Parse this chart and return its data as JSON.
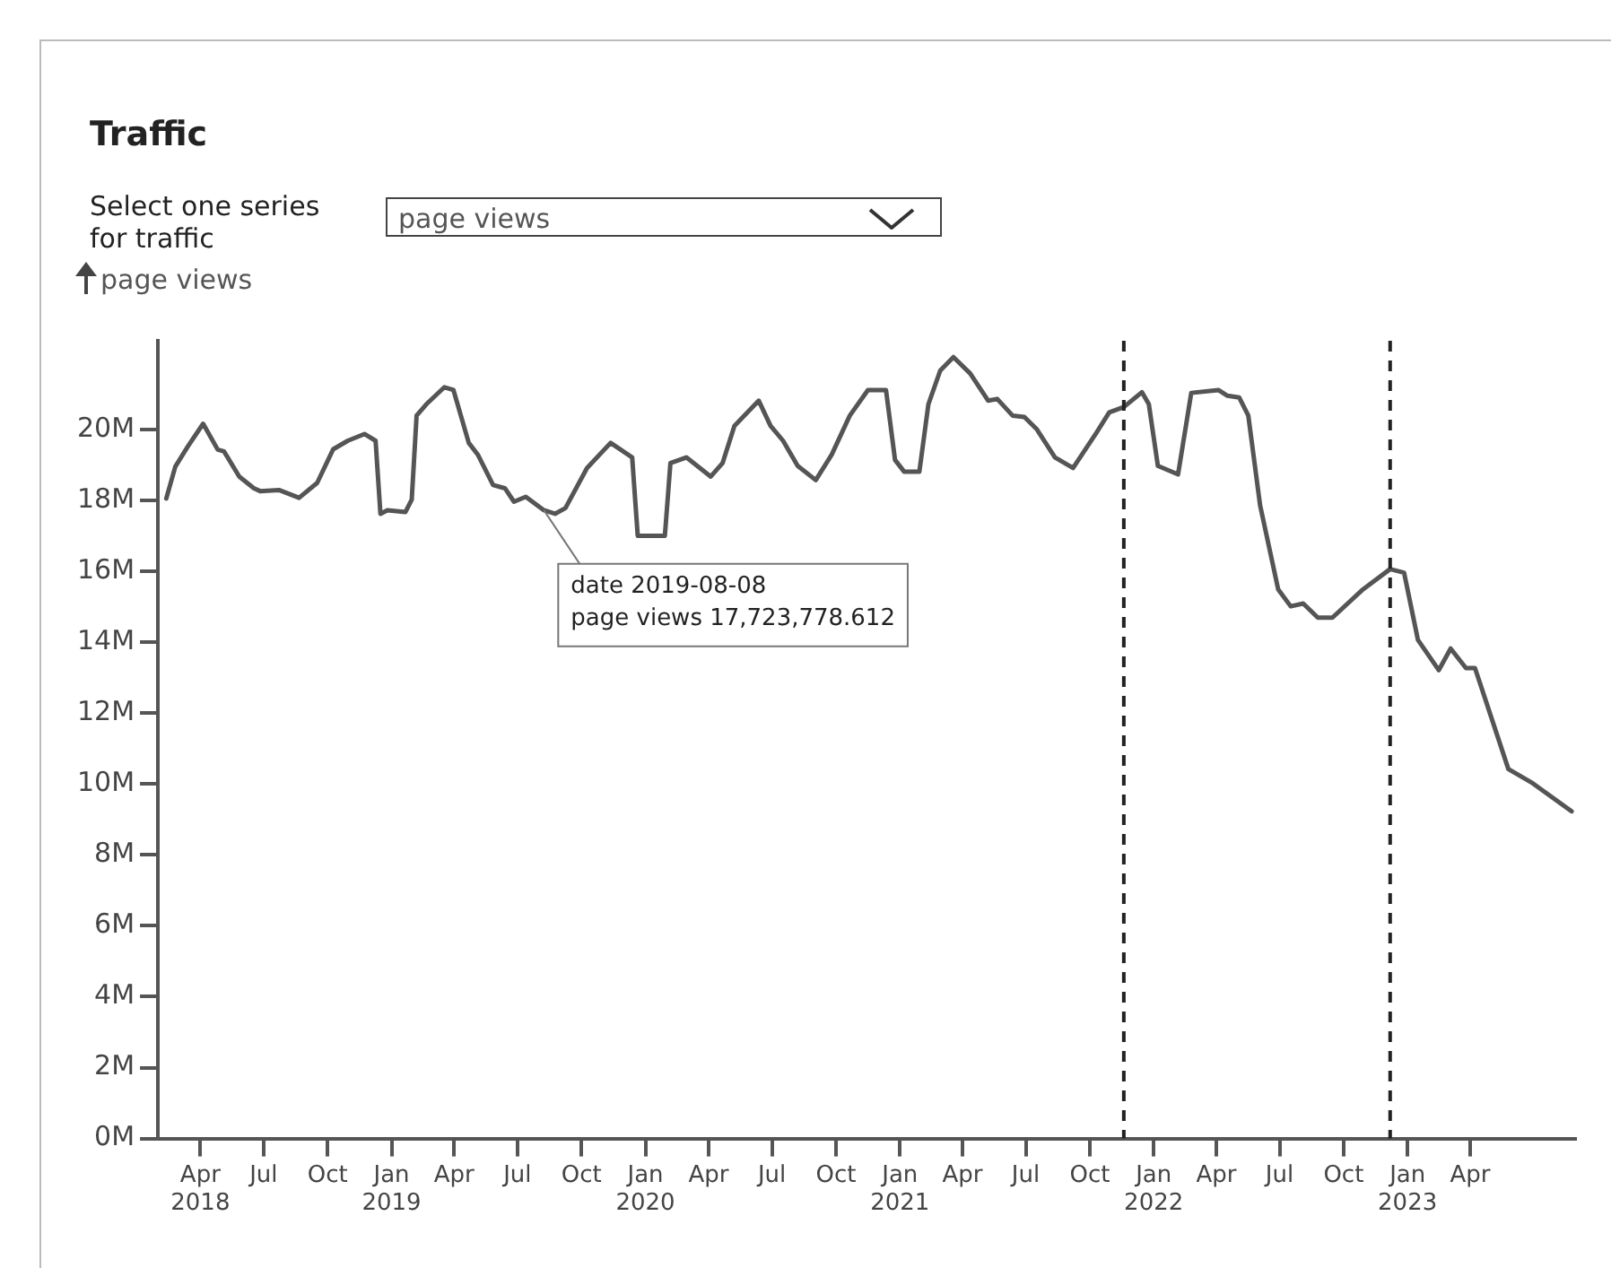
{
  "chart_data": {
    "type": "line",
    "title": "Traffic",
    "subtitle": "Select one series for traffic",
    "ylabel": "page views",
    "x": [
      "2018-02-11",
      "2018-02-24",
      "2018-03-14",
      "2018-04-05",
      "2018-04-26",
      "2018-05-05",
      "2018-05-27",
      "2018-06-17",
      "2018-06-26",
      "2018-07-23",
      "2018-08-21",
      "2018-09-16",
      "2018-10-09",
      "2018-10-30",
      "2018-11-23",
      "2018-12-09",
      "2018-12-16",
      "2018-12-26",
      "2019-01-21",
      "2019-01-30",
      "2019-02-06",
      "2019-02-20",
      "2019-03-18",
      "2019-03-31",
      "2019-04-22",
      "2019-05-05",
      "2019-05-27",
      "2019-06-13",
      "2019-06-26",
      "2019-07-13",
      "2019-08-08",
      "2019-08-24",
      "2019-09-08",
      "2019-10-09",
      "2019-11-12",
      "2019-12-13",
      "2019-12-21",
      "2020-01-29",
      "2020-02-06",
      "2020-02-29",
      "2020-04-04",
      "2020-04-21",
      "2020-05-08",
      "2020-06-12",
      "2020-06-29",
      "2020-07-17",
      "2020-08-07",
      "2020-09-02",
      "2020-09-25",
      "2020-10-21",
      "2020-11-16",
      "2020-12-12",
      "2020-12-25",
      "2021-01-07",
      "2021-01-29",
      "2021-02-11",
      "2021-02-28",
      "2021-03-19",
      "2021-04-12",
      "2021-05-08",
      "2021-05-21",
      "2021-06-12",
      "2021-06-29",
      "2021-07-17",
      "2021-08-12",
      "2021-09-07",
      "2021-10-11",
      "2021-10-29",
      "2021-11-19",
      "2021-12-15",
      "2021-12-25",
      "2022-01-07",
      "2022-02-05",
      "2022-02-24",
      "2022-04-04",
      "2022-04-17",
      "2022-05-04",
      "2022-05-17",
      "2022-06-03",
      "2022-06-29",
      "2022-07-17",
      "2022-08-04",
      "2022-08-25",
      "2022-09-15",
      "2022-10-29",
      "2022-12-07",
      "2022-12-27",
      "2023-01-16",
      "2023-02-15",
      "2023-03-04",
      "2023-03-26",
      "2023-04-08",
      "2023-05-26",
      "2023-06-30",
      "2023-08-25"
    ],
    "series": [
      {
        "color": "#555555",
        "values": [
          18050000,
          18950000,
          19520000,
          20160000,
          19430000,
          19380000,
          18670000,
          18340000,
          18260000,
          18290000,
          18070000,
          18490000,
          19440000,
          19680000,
          19870000,
          19680000,
          17620000,
          17720000,
          17670000,
          18020000,
          20390000,
          20710000,
          21190000,
          21110000,
          19620000,
          19290000,
          18430000,
          18340000,
          17960000,
          18100000,
          17720000,
          17620000,
          17780000,
          18910000,
          19620000,
          19210000,
          17000000,
          17000000,
          19050000,
          19210000,
          18670000,
          19050000,
          20100000,
          20810000,
          20100000,
          19680000,
          18970000,
          18570000,
          19290000,
          20390000,
          21110000,
          21110000,
          19140000,
          18810000,
          18810000,
          20710000,
          21660000,
          22040000,
          21580000,
          20810000,
          20860000,
          20390000,
          20350000,
          20000000,
          19210000,
          18910000,
          19920000,
          20480000,
          20630000,
          21050000,
          20710000,
          18970000,
          18730000,
          21030000,
          21110000,
          20950000,
          20900000,
          20390000,
          17860000,
          15490000,
          15010000,
          15090000,
          14690000,
          14690000,
          15490000,
          16060000,
          15960000,
          14060000,
          13210000,
          13820000,
          13270000,
          13270000,
          10420000,
          10020000,
          9230000
        ]
      }
    ],
    "xlim": [
      "2018-01-30",
      "2023-08-30"
    ],
    "xticks": [
      {
        "value": "2018-04-01",
        "label": "Apr\n2018"
      },
      {
        "value": "2018-07-01",
        "label": "Jul"
      },
      {
        "value": "2018-10-01",
        "label": "Oct"
      },
      {
        "value": "2019-01-01",
        "label": "Jan\n2019"
      },
      {
        "value": "2019-04-01",
        "label": "Apr"
      },
      {
        "value": "2019-07-01",
        "label": "Jul"
      },
      {
        "value": "2019-10-01",
        "label": "Oct"
      },
      {
        "value": "2020-01-01",
        "label": "Jan\n2020"
      },
      {
        "value": "2020-04-01",
        "label": "Apr"
      },
      {
        "value": "2020-07-01",
        "label": "Jul"
      },
      {
        "value": "2020-10-01",
        "label": "Oct"
      },
      {
        "value": "2021-01-01",
        "label": "Jan\n2021"
      },
      {
        "value": "2021-04-01",
        "label": "Apr"
      },
      {
        "value": "2021-07-01",
        "label": "Jul"
      },
      {
        "value": "2021-10-01",
        "label": "Oct"
      },
      {
        "value": "2022-01-01",
        "label": "Jan\n2022"
      },
      {
        "value": "2022-04-01",
        "label": "Apr"
      },
      {
        "value": "2022-07-01",
        "label": "Jul"
      },
      {
        "value": "2022-10-01",
        "label": "Oct"
      },
      {
        "value": "2023-01-01",
        "label": "Jan\n2023"
      },
      {
        "value": "2023-04-01",
        "label": "Apr"
      }
    ],
    "ylim": [
      0,
      22500000
    ],
    "yticks": [
      {
        "value": 0,
        "label": "0M"
      },
      {
        "value": 2000000,
        "label": "2M"
      },
      {
        "value": 4000000,
        "label": "4M"
      },
      {
        "value": 6000000,
        "label": "6M"
      },
      {
        "value": 8000000,
        "label": "8M"
      },
      {
        "value": 10000000,
        "label": "10M"
      },
      {
        "value": 12000000,
        "label": "12M"
      },
      {
        "value": 14000000,
        "label": "14M"
      },
      {
        "value": 16000000,
        "label": "16M"
      },
      {
        "value": 18000000,
        "label": "18M"
      },
      {
        "value": 20000000,
        "label": "20M"
      }
    ],
    "ref_lines": [
      {
        "axis": "x",
        "value": "2021-11-19",
        "color": "#222222",
        "line_style": "dashed"
      },
      {
        "axis": "x",
        "value": "2022-12-07",
        "color": "#222222",
        "line_style": "dashed"
      }
    ],
    "annotations": [
      {
        "text": "date 2019-08-08\npage views 17,723,778.612",
        "x": "2019-08-08",
        "y": 17723778.612
      }
    ],
    "grid": false,
    "legend": false,
    "marker": "none",
    "line_style": "solid"
  }
}
